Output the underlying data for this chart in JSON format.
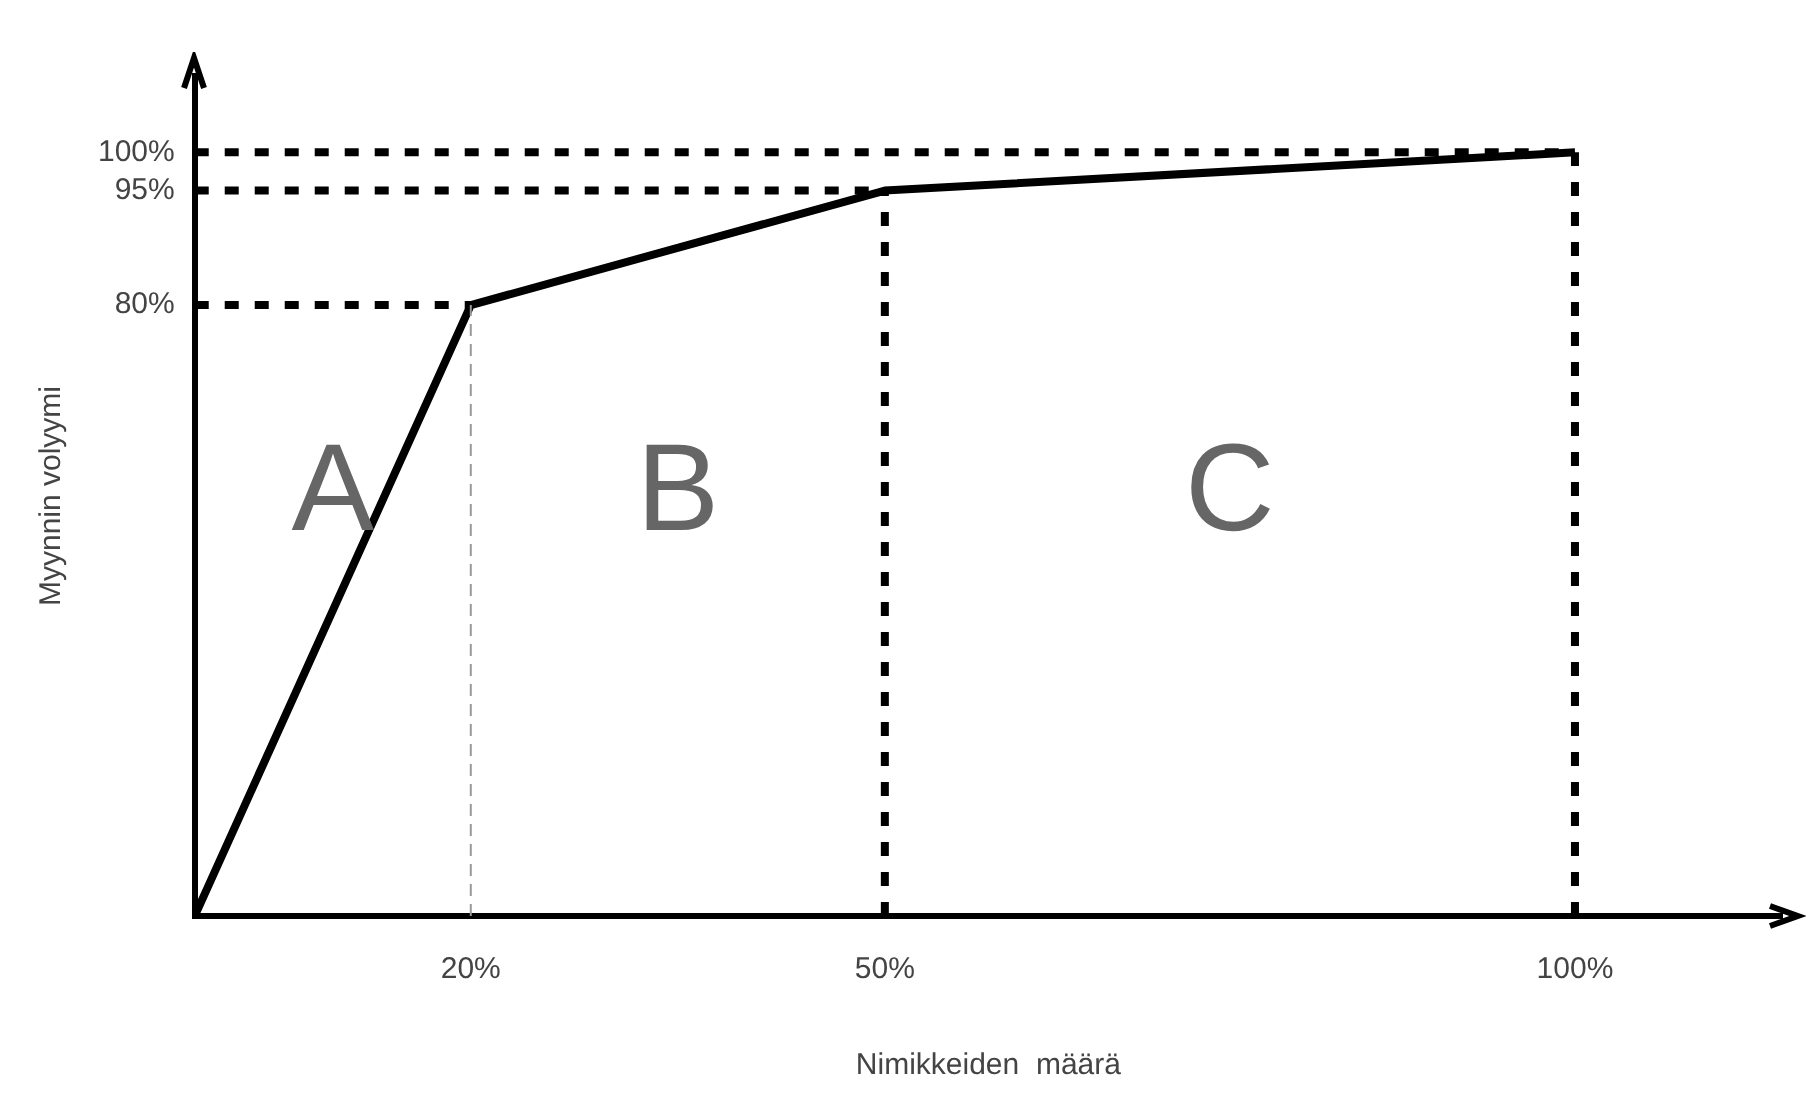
{
  "chart_data": {
    "type": "line",
    "xlabel": "Nimikkeiden  määrä",
    "ylabel": "Myynnin volyymi",
    "x": [
      0,
      20,
      50,
      100
    ],
    "series": [
      {
        "color": "#000000",
        "values": [
          0,
          80,
          95,
          100
        ]
      }
    ],
    "xlim": [
      0,
      115
    ],
    "ylim": [
      0,
      110
    ],
    "xticks": [
      {
        "value": 20,
        "label": "20%"
      },
      {
        "value": 50,
        "label": "50%"
      },
      {
        "value": 100,
        "label": "100%"
      }
    ],
    "yticks": [
      {
        "value": 80,
        "label": "80%"
      },
      {
        "value": 95,
        "label": "95%"
      },
      {
        "value": 100,
        "label": "100%"
      }
    ],
    "ref_lines": [
      {
        "axis": "y",
        "value": 80,
        "color": "#000000",
        "line_style": "dotted"
      },
      {
        "axis": "y",
        "value": 95,
        "color": "#000000",
        "line_style": "dotted"
      },
      {
        "axis": "y",
        "value": 100,
        "color": "#000000",
        "line_style": "dotted"
      },
      {
        "axis": "x",
        "value": 20,
        "color": "#999999",
        "line_style": "dashed"
      },
      {
        "axis": "x",
        "value": 50,
        "color": "#000000",
        "line_style": "dotted"
      },
      {
        "axis": "x",
        "value": 100,
        "color": "#000000",
        "line_style": "dotted"
      }
    ],
    "annotations": [
      "A",
      "B",
      "C"
    ],
    "grid": false,
    "legend": false,
    "marker": "none",
    "line_style": "solid"
  }
}
